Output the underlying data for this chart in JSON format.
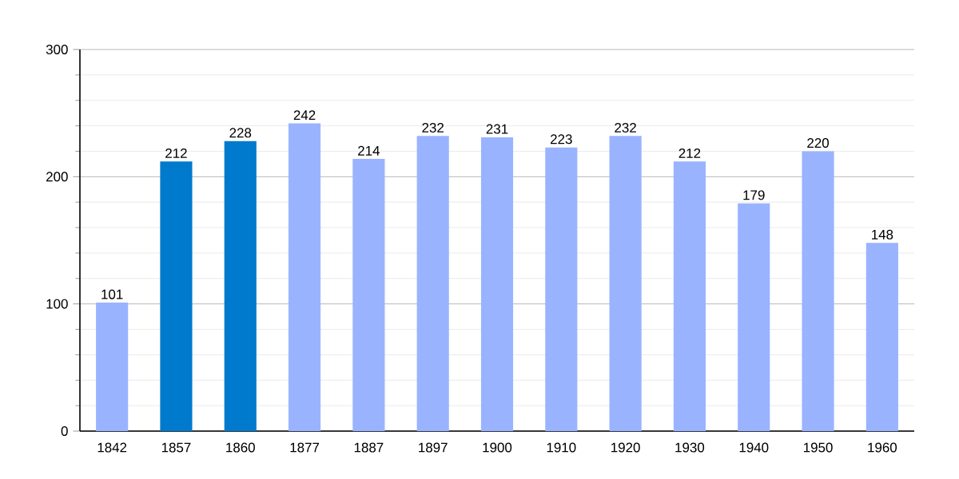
{
  "chart_data": {
    "type": "bar",
    "categories": [
      "1842",
      "1857",
      "1860",
      "1877",
      "1887",
      "1897",
      "1900",
      "1910",
      "1920",
      "1930",
      "1940",
      "1950",
      "1960"
    ],
    "values": [
      101,
      212,
      228,
      242,
      214,
      232,
      231,
      223,
      232,
      212,
      179,
      220,
      148
    ],
    "colors": [
      "#99b3ff",
      "#007acc",
      "#007acc",
      "#99b3ff",
      "#99b3ff",
      "#99b3ff",
      "#99b3ff",
      "#99b3ff",
      "#99b3ff",
      "#99b3ff",
      "#99b3ff",
      "#99b3ff",
      "#99b3ff"
    ],
    "ylim": [
      0,
      300
    ],
    "yticks": [
      0,
      100,
      200,
      300
    ],
    "grid": "y",
    "data_labels": true
  }
}
